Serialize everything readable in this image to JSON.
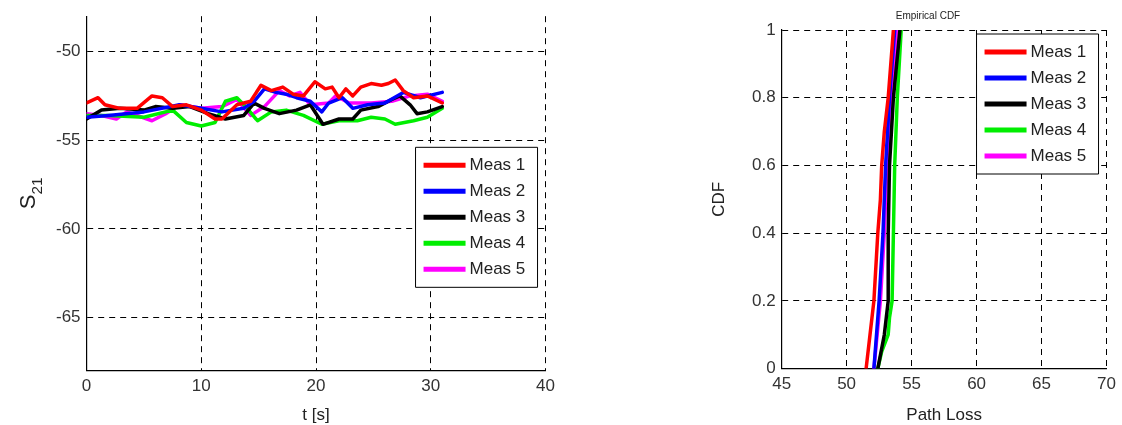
{
  "chart_data": [
    {
      "type": "line",
      "xlabel": "t [s]",
      "ylabel": "S$_{21}$",
      "xlim": [
        0,
        40
      ],
      "xticks": [
        0,
        10,
        20,
        30,
        40
      ],
      "ylim": [
        -68,
        -48
      ],
      "yticks": [
        -65,
        -60,
        -55,
        -50
      ],
      "grid": true,
      "legend": "right",
      "marker": "none",
      "line_style": "solid",
      "series": [
        {
          "name": "Meas 1",
          "color": "#ff0000",
          "x": [
            0,
            1.0,
            1.6,
            2.9,
            4.4,
            5.7,
            6.6,
            7.5,
            8.7,
            10.0,
            11.2,
            11.8,
            13.1,
            14.3,
            15.2,
            16.1,
            17.1,
            18.0,
            18.9,
            19.9,
            20.8,
            21.4,
            22.0,
            22.6,
            23.2,
            23.9,
            24.8,
            25.7,
            26.3,
            26.9,
            27.6,
            28.5,
            29.7,
            31.0
          ],
          "values": [
            -52.9,
            -52.6,
            -53.0,
            -53.2,
            -53.2,
            -52.5,
            -52.6,
            -53.1,
            -53.0,
            -53.3,
            -53.8,
            -53.8,
            -53.0,
            -52.8,
            -51.9,
            -52.2,
            -52.0,
            -52.4,
            -52.5,
            -51.7,
            -52.1,
            -52.0,
            -52.6,
            -52.1,
            -52.5,
            -52.0,
            -51.8,
            -51.9,
            -51.8,
            -51.6,
            -52.2,
            -52.6,
            -52.5,
            -52.9
          ]
        },
        {
          "name": "Meas 2",
          "color": "#0000ff",
          "x": [
            0,
            1.9,
            5.0,
            8.1,
            10.0,
            11.8,
            13.7,
            14.6,
            15.5,
            16.5,
            17.4,
            18.3,
            19.5,
            20.5,
            21.1,
            22.3,
            23.2,
            24.5,
            26.0,
            27.6,
            29.1,
            31.0
          ],
          "values": [
            -53.7,
            -53.6,
            -53.4,
            -53.0,
            -53.2,
            -53.4,
            -53.2,
            -52.8,
            -52.1,
            -52.3,
            -52.4,
            -52.6,
            -52.8,
            -53.4,
            -52.9,
            -52.6,
            -53.2,
            -53.0,
            -52.9,
            -52.3,
            -52.6,
            -52.3
          ]
        },
        {
          "name": "Meas 3",
          "color": "#000000",
          "x": [
            0,
            1.3,
            2.9,
            5.0,
            6.0,
            7.5,
            9.0,
            10.6,
            12.1,
            13.7,
            14.6,
            15.5,
            16.8,
            18.3,
            19.5,
            20.6,
            22.0,
            23.2,
            23.9,
            25.4,
            26.6,
            27.3,
            28.2,
            28.8,
            29.7,
            31.0
          ],
          "values": [
            -53.8,
            -53.3,
            -53.2,
            -53.3,
            -53.1,
            -53.2,
            -53.1,
            -53.5,
            -53.8,
            -53.6,
            -52.9,
            -53.2,
            -53.5,
            -53.3,
            -53.0,
            -54.1,
            -53.8,
            -53.8,
            -53.3,
            -53.1,
            -52.7,
            -52.5,
            -53.0,
            -53.5,
            -53.4,
            -53.1
          ]
        },
        {
          "name": "Meas 4",
          "color": "#00ee00",
          "x": [
            0,
            1.9,
            5.0,
            7.5,
            8.7,
            10.0,
            11.2,
            12.1,
            13.1,
            14.0,
            14.9,
            16.1,
            17.4,
            18.9,
            20.5,
            22.0,
            23.6,
            24.8,
            26.0,
            26.9,
            28.5,
            29.7,
            31.0
          ],
          "values": [
            -53.6,
            -53.6,
            -53.7,
            -53.3,
            -54.0,
            -54.2,
            -54.0,
            -52.8,
            -52.6,
            -53.2,
            -53.9,
            -53.4,
            -53.3,
            -53.6,
            -54.1,
            -53.9,
            -53.9,
            -53.7,
            -53.8,
            -54.1,
            -53.9,
            -53.7,
            -53.2
          ]
        },
        {
          "name": "Meas 5",
          "color": "#ff00ff",
          "x": [
            0,
            1.3,
            2.6,
            3.5,
            5.7,
            6.9,
            8.1,
            10.0,
            11.8,
            13.1,
            14.3,
            15.5,
            16.8,
            17.7,
            18.6,
            19.5,
            21.1,
            21.7,
            22.9,
            24.8,
            26.6,
            28.2,
            29.7,
            31.0
          ],
          "values": [
            -53.5,
            -53.6,
            -53.8,
            -53.4,
            -53.9,
            -53.5,
            -53.0,
            -53.2,
            -53.1,
            -52.7,
            -53.6,
            -53.1,
            -52.2,
            -52.5,
            -52.3,
            -53.0,
            -52.9,
            -52.5,
            -52.9,
            -52.9,
            -52.8,
            -52.5,
            -52.4,
            -52.8
          ]
        }
      ]
    },
    {
      "type": "line",
      "title": "Empirical CDF",
      "xlabel": "Path Loss",
      "ylabel": "CDF",
      "xlim": [
        45,
        70
      ],
      "xticks": [
        45,
        50,
        55,
        60,
        65,
        70
      ],
      "ylim": [
        0,
        1
      ],
      "yticks": [
        0,
        0.2,
        0.4,
        0.6,
        0.8,
        1
      ],
      "grid": true,
      "legend": "top right",
      "marker": "none",
      "line_style": "solid",
      "series": [
        {
          "name": "Meas 1",
          "color": "#ff0000",
          "x": [
            51.5,
            51.8,
            52.1,
            52.4,
            52.6,
            52.7,
            52.9,
            53.2,
            53.4,
            53.6
          ],
          "values": [
            0,
            0.1,
            0.2,
            0.4,
            0.5,
            0.6,
            0.7,
            0.8,
            0.9,
            1
          ]
        },
        {
          "name": "Meas 2",
          "color": "#0000ff",
          "x": [
            52.1,
            52.5,
            52.8,
            53.0,
            53.3,
            53.7
          ],
          "values": [
            0,
            0.2,
            0.4,
            0.6,
            0.8,
            1
          ]
        },
        {
          "name": "Meas 3",
          "color": "#000000",
          "x": [
            52.4,
            52.9,
            53.2,
            53.2,
            53.3,
            53.6,
            54.1
          ],
          "values": [
            0,
            0.1,
            0.2,
            0.4,
            0.6,
            0.8,
            1
          ]
        },
        {
          "name": "Meas 4",
          "color": "#00ee00",
          "x": [
            52.4,
            52.7,
            53.2,
            53.3,
            53.5,
            53.6,
            53.7,
            53.9,
            54.2
          ],
          "values": [
            0,
            0.05,
            0.1,
            0.15,
            0.2,
            0.4,
            0.6,
            0.8,
            1
          ]
        },
        {
          "name": "Meas 5",
          "color": "#ff00ff",
          "x": [
            52.1,
            52.6,
            52.9,
            53.1,
            53.5,
            53.9
          ],
          "values": [
            0,
            0.2,
            0.4,
            0.6,
            0.8,
            1
          ]
        }
      ]
    }
  ]
}
